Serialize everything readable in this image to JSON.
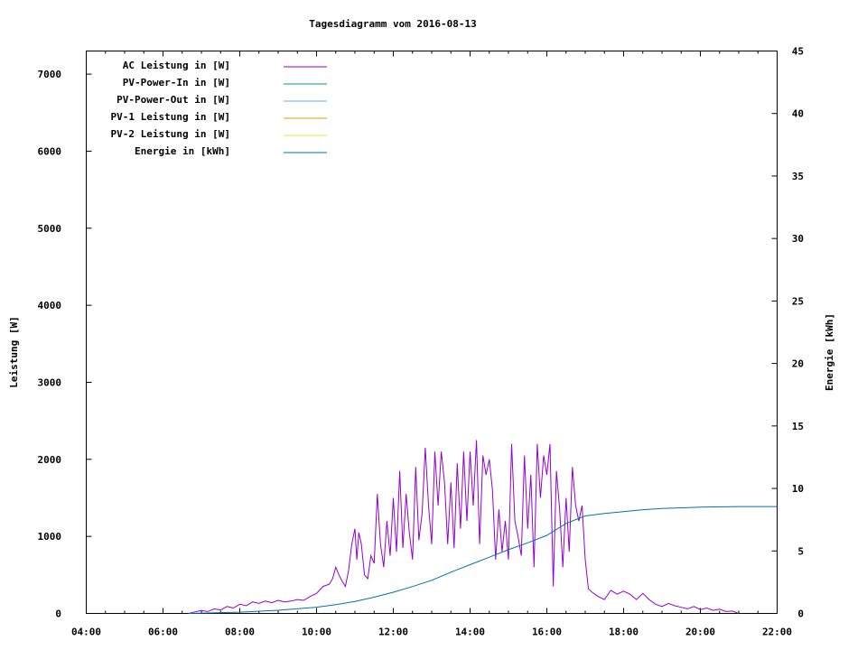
{
  "colors": {
    "ac_leistung": "#9400d3",
    "pv_power_in": "#009e73",
    "pv_power_out": "#56b4e9",
    "pv1_leistung": "#e69f00",
    "pv2_leistung": "#f0e442",
    "energie": "#0072b2"
  },
  "chart_data": {
    "type": "line",
    "title": "Tagesdiagramm vom 2016-08-13",
    "xlabel": "",
    "ylabel": "Leistung [W]",
    "y2label": "Energie [kWh]",
    "xlim": [
      "04:00",
      "22:00"
    ],
    "ylim": [
      0,
      7300
    ],
    "y2lim": [
      0,
      45
    ],
    "x_ticks": [
      "04:00",
      "06:00",
      "08:00",
      "10:00",
      "12:00",
      "14:00",
      "16:00",
      "18:00",
      "20:00",
      "22:00"
    ],
    "y_ticks": [
      "0",
      "1000",
      "2000",
      "3000",
      "4000",
      "5000",
      "6000",
      "7000"
    ],
    "y2_ticks": [
      "0",
      "5",
      "10",
      "15",
      "20",
      "25",
      "30",
      "35",
      "40",
      "45"
    ],
    "grid": false,
    "legend_position": "top-left",
    "legend": [
      "AC Leistung in [W]",
      "PV-Power-In in [W]",
      "PV-Power-Out in [W]",
      "PV-1 Leistung in [W]",
      "PV-2 Leistung in [W]",
      "Energie in [kWh]"
    ],
    "series": [
      {
        "name": "AC Leistung in [W]",
        "axis": "left",
        "points": [
          [
            "06:40",
            0
          ],
          [
            "06:50",
            20
          ],
          [
            "07:00",
            40
          ],
          [
            "07:10",
            25
          ],
          [
            "07:20",
            60
          ],
          [
            "07:30",
            45
          ],
          [
            "07:40",
            90
          ],
          [
            "07:50",
            70
          ],
          [
            "08:00",
            120
          ],
          [
            "08:10",
            100
          ],
          [
            "08:20",
            150
          ],
          [
            "08:30",
            130
          ],
          [
            "08:40",
            160
          ],
          [
            "08:50",
            140
          ],
          [
            "09:00",
            170
          ],
          [
            "09:10",
            150
          ],
          [
            "09:20",
            160
          ],
          [
            "09:30",
            180
          ],
          [
            "09:40",
            170
          ],
          [
            "09:50",
            220
          ],
          [
            "10:00",
            260
          ],
          [
            "10:10",
            350
          ],
          [
            "10:20",
            380
          ],
          [
            "10:25",
            450
          ],
          [
            "10:30",
            600
          ],
          [
            "10:35",
            500
          ],
          [
            "10:40",
            420
          ],
          [
            "10:45",
            350
          ],
          [
            "10:50",
            550
          ],
          [
            "10:55",
            900
          ],
          [
            "11:00",
            1100
          ],
          [
            "11:03",
            700
          ],
          [
            "11:06",
            1050
          ],
          [
            "11:10",
            900
          ],
          [
            "11:15",
            500
          ],
          [
            "11:20",
            450
          ],
          [
            "11:25",
            750
          ],
          [
            "11:30",
            650
          ],
          [
            "11:35",
            1550
          ],
          [
            "11:40",
            900
          ],
          [
            "11:45",
            600
          ],
          [
            "11:50",
            1200
          ],
          [
            "11:55",
            750
          ],
          [
            "12:00",
            1500
          ],
          [
            "12:05",
            800
          ],
          [
            "12:10",
            1850
          ],
          [
            "12:15",
            850
          ],
          [
            "12:20",
            1550
          ],
          [
            "12:25",
            1050
          ],
          [
            "12:30",
            700
          ],
          [
            "12:35",
            1900
          ],
          [
            "12:40",
            950
          ],
          [
            "12:45",
            1300
          ],
          [
            "12:50",
            2150
          ],
          [
            "12:55",
            1400
          ],
          [
            "13:00",
            900
          ],
          [
            "13:05",
            2100
          ],
          [
            "13:10",
            1400
          ],
          [
            "13:15",
            2100
          ],
          [
            "13:20",
            1700
          ],
          [
            "13:25",
            900
          ],
          [
            "13:30",
            1700
          ],
          [
            "13:35",
            850
          ],
          [
            "13:40",
            1950
          ],
          [
            "13:45",
            1100
          ],
          [
            "13:50",
            2100
          ],
          [
            "13:55",
            1200
          ],
          [
            "14:00",
            2100
          ],
          [
            "14:05",
            1400
          ],
          [
            "14:10",
            2250
          ],
          [
            "14:15",
            900
          ],
          [
            "14:20",
            2050
          ],
          [
            "14:25",
            1800
          ],
          [
            "14:30",
            2000
          ],
          [
            "14:35",
            1600
          ],
          [
            "14:40",
            700
          ],
          [
            "14:45",
            1350
          ],
          [
            "14:50",
            800
          ],
          [
            "14:55",
            1200
          ],
          [
            "15:00",
            700
          ],
          [
            "15:05",
            2200
          ],
          [
            "15:10",
            1200
          ],
          [
            "15:15",
            1000
          ],
          [
            "15:20",
            750
          ],
          [
            "15:25",
            2050
          ],
          [
            "15:30",
            1100
          ],
          [
            "15:35",
            1800
          ],
          [
            "15:40",
            600
          ],
          [
            "15:45",
            2200
          ],
          [
            "15:50",
            1500
          ],
          [
            "15:55",
            2050
          ],
          [
            "16:00",
            1800
          ],
          [
            "16:05",
            2200
          ],
          [
            "16:10",
            350
          ],
          [
            "16:15",
            1850
          ],
          [
            "16:20",
            1350
          ],
          [
            "16:25",
            600
          ],
          [
            "16:30",
            1500
          ],
          [
            "16:35",
            800
          ],
          [
            "16:40",
            1900
          ],
          [
            "16:45",
            1400
          ],
          [
            "16:50",
            1200
          ],
          [
            "16:55",
            1400
          ],
          [
            "17:00",
            700
          ],
          [
            "17:05",
            320
          ],
          [
            "17:10",
            280
          ],
          [
            "17:20",
            220
          ],
          [
            "17:30",
            180
          ],
          [
            "17:40",
            300
          ],
          [
            "17:50",
            250
          ],
          [
            "18:00",
            290
          ],
          [
            "18:10",
            250
          ],
          [
            "18:20",
            180
          ],
          [
            "18:30",
            260
          ],
          [
            "18:40",
            180
          ],
          [
            "18:50",
            120
          ],
          [
            "19:00",
            90
          ],
          [
            "19:10",
            130
          ],
          [
            "19:20",
            100
          ],
          [
            "19:30",
            80
          ],
          [
            "19:40",
            60
          ],
          [
            "19:50",
            90
          ],
          [
            "20:00",
            50
          ],
          [
            "20:10",
            70
          ],
          [
            "20:20",
            40
          ],
          [
            "20:30",
            55
          ],
          [
            "20:40",
            25
          ],
          [
            "20:50",
            30
          ],
          [
            "21:00",
            0
          ]
        ]
      },
      {
        "name": "Energie in [kWh]",
        "axis": "right",
        "points": [
          [
            "06:40",
            0.0
          ],
          [
            "08:00",
            0.1
          ],
          [
            "09:00",
            0.25
          ],
          [
            "10:00",
            0.5
          ],
          [
            "10:30",
            0.7
          ],
          [
            "11:00",
            0.95
          ],
          [
            "11:30",
            1.3
          ],
          [
            "12:00",
            1.7
          ],
          [
            "12:30",
            2.15
          ],
          [
            "13:00",
            2.65
          ],
          [
            "13:30",
            3.3
          ],
          [
            "14:00",
            3.9
          ],
          [
            "14:30",
            4.5
          ],
          [
            "15:00",
            5.1
          ],
          [
            "15:30",
            5.65
          ],
          [
            "16:00",
            6.25
          ],
          [
            "16:30",
            7.2
          ],
          [
            "17:00",
            7.8
          ],
          [
            "17:30",
            8.0
          ],
          [
            "18:00",
            8.15
          ],
          [
            "18:30",
            8.3
          ],
          [
            "19:00",
            8.4
          ],
          [
            "19:30",
            8.45
          ],
          [
            "20:00",
            8.5
          ],
          [
            "21:00",
            8.55
          ],
          [
            "22:00",
            8.55
          ]
        ]
      }
    ]
  }
}
